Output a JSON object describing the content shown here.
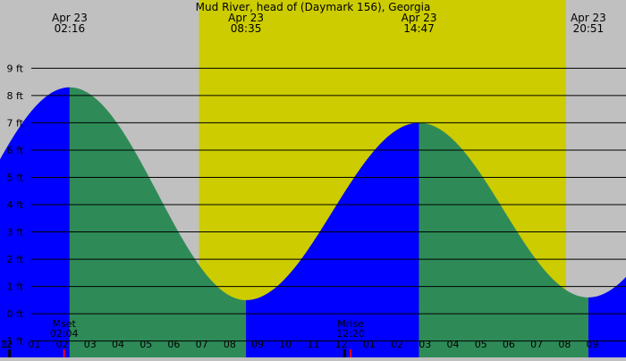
{
  "chart_data": {
    "type": "area",
    "title": "Mud River, head of (Daymark 156), Georgia",
    "unit": "ft",
    "y_ticks": [
      -1,
      0,
      1,
      2,
      3,
      4,
      5,
      6,
      7,
      8,
      9
    ],
    "y_tick_labels": [
      "-1 ft",
      "0 ft",
      "1 ft",
      "2 ft",
      "3 ft",
      "4 ft",
      "5 ft",
      "6 ft",
      "7 ft",
      "8 ft",
      "9 ft"
    ],
    "ylim": [
      -1.6,
      11.5
    ],
    "xlim_hours": [
      -0.23,
      22.2
    ],
    "extrema": [
      {
        "date": "Apr 23",
        "time": "02:16",
        "height": 8.3,
        "kind": "high"
      },
      {
        "date": "Apr 23",
        "time": "08:35",
        "height": 0.5,
        "kind": "low"
      },
      {
        "date": "Apr 23",
        "time": "14:47",
        "height": 7.0,
        "kind": "high"
      },
      {
        "date": "Apr 23",
        "time": "20:51",
        "height": 0.6,
        "kind": "low"
      }
    ],
    "hour_ticks": [
      {
        "hour": 0,
        "label": "1"
      },
      {
        "hour": 0,
        "label": "12"
      },
      {
        "hour": 1,
        "label": "01"
      },
      {
        "hour": 2,
        "label": "02"
      },
      {
        "hour": 3,
        "label": "03"
      },
      {
        "hour": 4,
        "label": "04"
      },
      {
        "hour": 5,
        "label": "05"
      },
      {
        "hour": 6,
        "label": "06"
      },
      {
        "hour": 7,
        "label": "07"
      },
      {
        "hour": 8,
        "label": "08"
      },
      {
        "hour": 9,
        "label": "09"
      },
      {
        "hour": 10,
        "label": "10"
      },
      {
        "hour": 11,
        "label": "11"
      },
      {
        "hour": 12,
        "label": "12"
      },
      {
        "hour": 13,
        "label": "01"
      },
      {
        "hour": 14,
        "label": "02"
      },
      {
        "hour": 15,
        "label": "03"
      },
      {
        "hour": 16,
        "label": "04"
      },
      {
        "hour": 17,
        "label": "05"
      },
      {
        "hour": 18,
        "label": "06"
      },
      {
        "hour": 19,
        "label": "07"
      },
      {
        "hour": 20,
        "label": "08"
      },
      {
        "hour": 21,
        "label": "09"
      }
    ],
    "daylight": {
      "start": "06:54",
      "end": "20:03"
    },
    "moon": [
      {
        "label": "Mset",
        "time": "02:04"
      },
      {
        "label": "Mrise",
        "time": "12:20"
      }
    ],
    "sun_markers": [
      {
        "time": "00:00"
      },
      {
        "time": "12:00"
      }
    ],
    "colors": {
      "night": "#c0c0c0",
      "day": "#cccc00",
      "rising": "#0000ff",
      "falling": "#2e8b57",
      "gridline": "#000000",
      "moon_marker": "#ff0000"
    }
  }
}
